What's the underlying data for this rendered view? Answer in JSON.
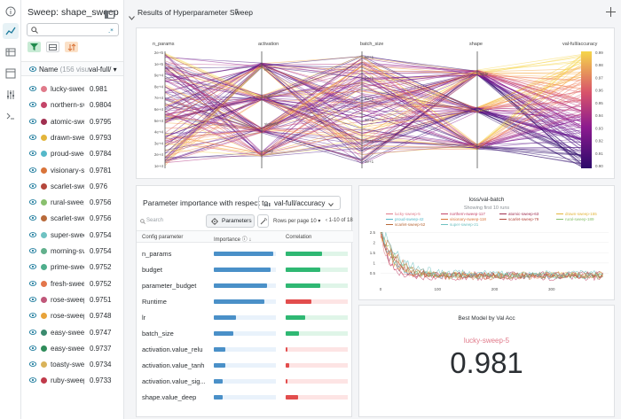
{
  "sidebar": {
    "title": "Sweep: shape_sweep",
    "search_placeholder": "",
    "table_headers": {
      "name": "Name",
      "name_count": "(156 visual",
      "value": "val-full/"
    },
    "runs": [
      {
        "name": "lucky-sweep",
        "value": "0.981",
        "color": "#e07a8a"
      },
      {
        "name": "northern-sv",
        "value": "0.9804",
        "color": "#c44569"
      },
      {
        "name": "atomic-swe",
        "value": "0.9795",
        "color": "#a03050"
      },
      {
        "name": "drawn-swee",
        "value": "0.9793",
        "color": "#e3b53b"
      },
      {
        "name": "proud-swee",
        "value": "0.9784",
        "color": "#55b8c9"
      },
      {
        "name": "visionary-s",
        "value": "0.9781",
        "color": "#d9743a"
      },
      {
        "name": "scarlet-swe",
        "value": "0.976",
        "color": "#b4473c"
      },
      {
        "name": "rural-sweep",
        "value": "0.9756",
        "color": "#89c06e"
      },
      {
        "name": "scarlet-swe",
        "value": "0.9756",
        "color": "#b86a3a"
      },
      {
        "name": "super-swee",
        "value": "0.9754",
        "color": "#6fc2c2"
      },
      {
        "name": "morning-sv",
        "value": "0.9754",
        "color": "#62b08c"
      },
      {
        "name": "prime-swee",
        "value": "0.9752",
        "color": "#4fae8c"
      },
      {
        "name": "fresh-swee",
        "value": "0.9752",
        "color": "#e3764b"
      },
      {
        "name": "rose-sweep",
        "value": "0.9751",
        "color": "#c0577a"
      },
      {
        "name": "rose-sweep",
        "value": "0.9748",
        "color": "#e8a33a"
      },
      {
        "name": "easy-sweep",
        "value": "0.9747",
        "color": "#3a8a6e"
      },
      {
        "name": "easy-sweep",
        "value": "0.9737",
        "color": "#2f8c5a"
      },
      {
        "name": "toasty-swee",
        "value": "0.9734",
        "color": "#d9b35a"
      },
      {
        "name": "ruby-sweep",
        "value": "0.9733",
        "color": "#c03a4a"
      }
    ]
  },
  "section": {
    "title": "Results of Hyperparameter Sweep",
    "count": "5"
  },
  "parallel": {
    "axes": [
      "n_params",
      "activation",
      "batch_size",
      "shape",
      "val-full/accuracy"
    ],
    "n_params_ticks": [
      "2e+5",
      "1e+5",
      "9e+4",
      "8e+4",
      "7e+4",
      "6e+4",
      "5e+4",
      "4e+4",
      "3e+4",
      "2e+4",
      "1e+4"
    ],
    "activation_ticks": [
      "relu",
      "tanh",
      "sigmoid",
      "deep"
    ],
    "batch_size_ticks": [
      "6e+1",
      "5e+1",
      "4e+1",
      "3e+1",
      "2e+1",
      "1e+1"
    ],
    "shape_ticks": [
      "wide",
      "deep",
      "square"
    ],
    "accuracy_ticks": [
      "0.99",
      "0.98",
      "0.97",
      "0.96",
      "0.95",
      "0.94",
      "0.93",
      "0.92",
      "0.91",
      "0.90"
    ]
  },
  "importance": {
    "title": "Parameter importance with respect to",
    "metric": "val-full/accuracy",
    "search_placeholder": "Search",
    "params_button": "Parameters",
    "rows_per_page_label": "Rows per page",
    "rows_per_page": "10",
    "pagination": "1-10 of 18",
    "col_param": "Config parameter",
    "col_importance": "Importance",
    "col_correlation": "Correlation",
    "rows": [
      {
        "name": "n_params",
        "importance": 0.21,
        "correlation": 0.58,
        "sign": "pos"
      },
      {
        "name": "budget",
        "importance": 0.2,
        "correlation": 0.56,
        "sign": "pos"
      },
      {
        "name": "parameter_budget",
        "importance": 0.19,
        "correlation": 0.55,
        "sign": "pos"
      },
      {
        "name": "Runtime",
        "importance": 0.18,
        "correlation": 0.42,
        "sign": "neg"
      },
      {
        "name": "lr",
        "importance": 0.08,
        "correlation": 0.32,
        "sign": "pos"
      },
      {
        "name": "batch_size",
        "importance": 0.07,
        "correlation": 0.22,
        "sign": "pos"
      },
      {
        "name": "activation.value_relu",
        "importance": 0.04,
        "correlation": 0.03,
        "sign": "neg"
      },
      {
        "name": "activation.value_tanh",
        "importance": 0.04,
        "correlation": 0.06,
        "sign": "neg"
      },
      {
        "name": "activation.value_sig...",
        "importance": 0.03,
        "correlation": 0.01,
        "sign": "neg"
      },
      {
        "name": "shape.value_deep",
        "importance": 0.03,
        "correlation": 0.2,
        "sign": "neg"
      }
    ]
  },
  "loss_chart": {
    "title": "loss/val-batch",
    "subtitle": "Showing first 10 runs",
    "legend": [
      {
        "name": "lucky-sweep-5",
        "color": "#e07a8a"
      },
      {
        "name": "northern-sweep-117",
        "color": "#c44569"
      },
      {
        "name": "atomic-sweep-63",
        "color": "#a03050"
      },
      {
        "name": "drawn-sweep-155",
        "color": "#e3b53b"
      },
      {
        "name": "proud-sweep-42",
        "color": "#55b8c9"
      },
      {
        "name": "visionary-sweep-118",
        "color": "#d9743a"
      },
      {
        "name": "scarlet-sweep-79",
        "color": "#b4473c"
      },
      {
        "name": "rural-sweep-189",
        "color": "#89c06e"
      },
      {
        "name": "scarlet-sweep-52",
        "color": "#b86a3a"
      },
      {
        "name": "super-sweep-21",
        "color": "#6fc2c2"
      }
    ],
    "y_ticks": [
      "2.5",
      "2",
      "1.5",
      "1",
      "0.5"
    ],
    "x_ticks": [
      "0",
      "100",
      "200",
      "300"
    ]
  },
  "best_model": {
    "title": "Best Model by Val Acc",
    "run": "lucky-sweep-5",
    "value": "0.981"
  },
  "chart_data": [
    {
      "type": "line",
      "title": "loss/val-batch",
      "subtitle": "Showing first 10 runs",
      "xlim": [
        0,
        400
      ],
      "ylim": [
        0,
        2.6
      ],
      "x_ticks": [
        0,
        100,
        200,
        300
      ],
      "y_ticks": [
        0.5,
        1,
        1.5,
        2,
        2.5
      ],
      "series_names": [
        "lucky-sweep-5",
        "northern-sweep-117",
        "atomic-sweep-63",
        "drawn-sweep-155",
        "proud-sweep-42",
        "visionary-sweep-118",
        "scarlet-sweep-79",
        "rural-sweep-189",
        "scarlet-sweep-52",
        "super-sweep-21"
      ]
    }
  ]
}
